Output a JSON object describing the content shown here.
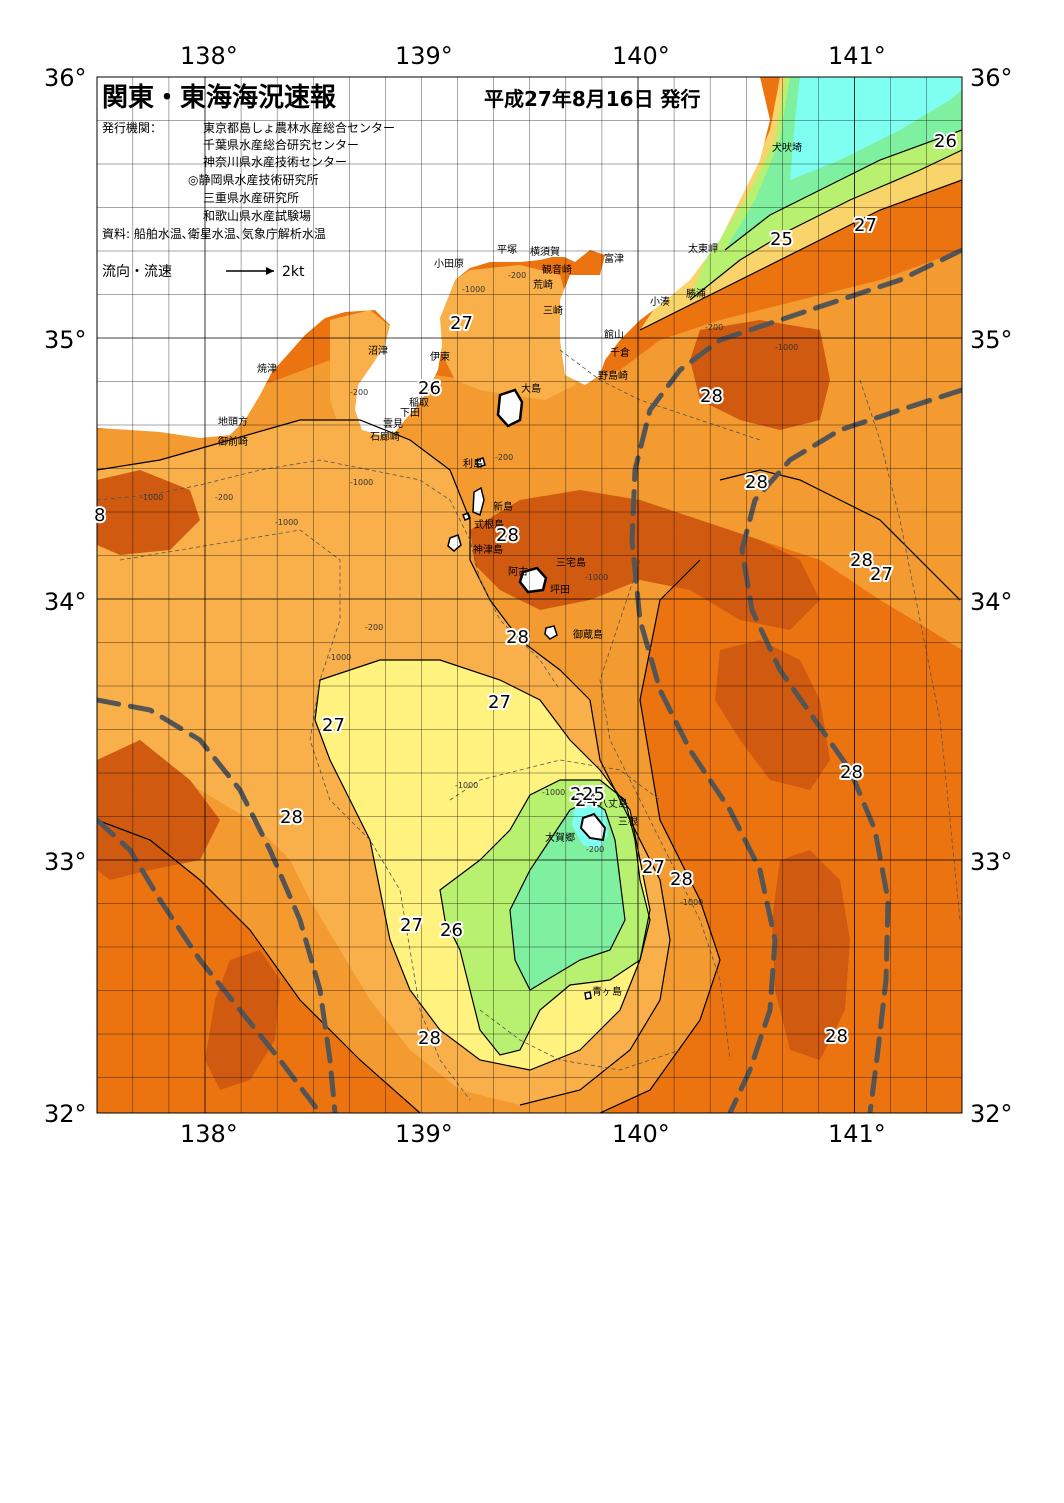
{
  "title": "関東・東海海況速報",
  "issue_date": "平成27年8月16日 発行",
  "issuer_label": "発行機関：",
  "issuers": [
    "東京都島しょ農林水産総合センター",
    "千葉県水産総合研究センター",
    "神奈川県水産技術センター",
    "◎静岡県水産技術研究所",
    "三重県水産研究所",
    "和歌山県水産試験場"
  ],
  "sources": "資料: 船舶水温､衛星水温､気象庁解析水温",
  "current_legend": {
    "label": "流向・流速",
    "scale": "2kt"
  },
  "axes": {
    "lon_labels": [
      "138°",
      "139°",
      "140°",
      "141°"
    ],
    "lat_labels": [
      "36°",
      "35°",
      "34°",
      "33°",
      "32°"
    ]
  },
  "colors": {
    "t24": "#7ffff0",
    "t25": "#7ff0a0",
    "t26": "#b8f070",
    "t27a": "#fff27f",
    "t27b": "#f9d46a",
    "t28a": "#f9b04a",
    "t28b": "#f39a30",
    "t28c": "#ec7410",
    "t29": "#d05a10",
    "land": "#ffffff",
    "kuroshio": "#555555"
  },
  "place_names": [
    {
      "name": "犬吠埼"
    },
    {
      "name": "太東岬"
    },
    {
      "name": "勝浦"
    },
    {
      "name": "小湊"
    },
    {
      "name": "富津"
    },
    {
      "name": "館山"
    },
    {
      "name": "千倉"
    },
    {
      "name": "野島崎"
    },
    {
      "name": "横須賀"
    },
    {
      "name": "観音崎"
    },
    {
      "name": "平塚"
    },
    {
      "name": "荒崎"
    },
    {
      "name": "三崎"
    },
    {
      "name": "小田原"
    },
    {
      "name": "伊東"
    },
    {
      "name": "沼津"
    },
    {
      "name": "焼津"
    },
    {
      "name": "稲取"
    },
    {
      "name": "下田"
    },
    {
      "name": "雲見"
    },
    {
      "name": "石廊崎"
    },
    {
      "name": "地頭方"
    },
    {
      "name": "御前崎"
    },
    {
      "name": "大島"
    },
    {
      "name": "利島"
    },
    {
      "name": "新島"
    },
    {
      "name": "式根島"
    },
    {
      "name": "神津島"
    },
    {
      "name": "三宅島"
    },
    {
      "name": "阿古"
    },
    {
      "name": "坪田"
    },
    {
      "name": "御蔵島"
    },
    {
      "name": "八丈島"
    },
    {
      "name": "三根"
    },
    {
      "name": "大賀郷"
    },
    {
      "name": "青ヶ島"
    }
  ],
  "isotherm_labels": [
    {
      "t": "26"
    },
    {
      "t": "27"
    },
    {
      "t": "25"
    },
    {
      "t": "27"
    },
    {
      "t": "26"
    },
    {
      "t": "28"
    },
    {
      "t": "28"
    },
    {
      "t": "28"
    },
    {
      "t": "28"
    },
    {
      "t": "27"
    },
    {
      "t": "28"
    },
    {
      "t": "27"
    },
    {
      "t": "27"
    },
    {
      "t": "28"
    },
    {
      "t": "28"
    },
    {
      "t": "27"
    },
    {
      "t": "24"
    },
    {
      "t": "25"
    },
    {
      "t": "27"
    },
    {
      "t": "28"
    },
    {
      "t": "27"
    },
    {
      "t": "26"
    },
    {
      "t": "28"
    },
    {
      "t": "28"
    },
    {
      "t": "8"
    }
  ],
  "depth_labels": [
    "-200",
    "-1000",
    "-200",
    "-1000",
    "-200",
    "-1000",
    "-200",
    "-1000",
    "-200",
    "-1000",
    "-1000",
    "-200",
    "-1000",
    "-1000",
    "-1000",
    "-200",
    "-1000"
  ]
}
